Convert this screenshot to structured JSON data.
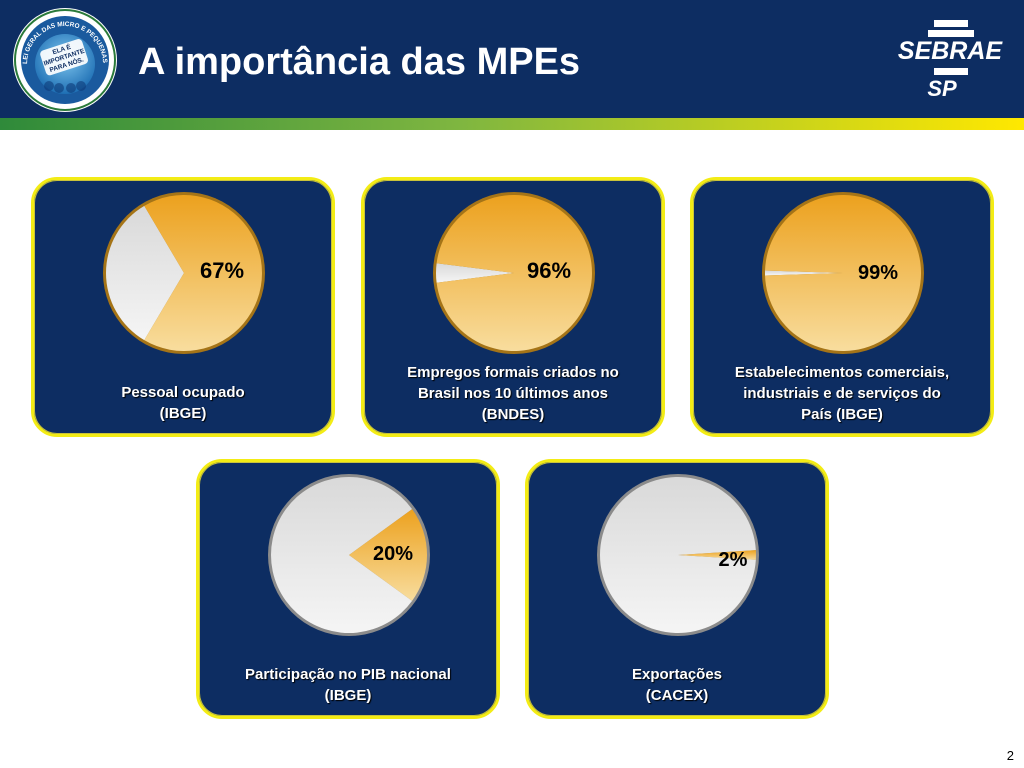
{
  "header": {
    "title": "A importância das MPEs",
    "badge_text_outer": "LEI GERAL DAS MICRO E PEQUENAS EMPRESAS",
    "badge_text_inner": [
      "ELA É",
      "IMPORTANTE",
      "PARA NÓS."
    ],
    "brand_line1": "SEBRAE",
    "brand_line2": "SP"
  },
  "colors": {
    "header_bg": "#0d2d62",
    "card_border": "#f3ec15",
    "highlight": "#eea320",
    "rest": "#e6e6e6"
  },
  "chart_data": [
    {
      "type": "pie",
      "title": "",
      "caption": [
        "Pessoal ocupado",
        "(IBGE)"
      ],
      "slices": [
        {
          "label": "67%",
          "value": 67,
          "highlight": true
        },
        {
          "label": "",
          "value": 33,
          "highlight": false
        }
      ]
    },
    {
      "type": "pie",
      "title": "",
      "caption": [
        "Empregos formais criados no",
        "Brasil nos 10 últimos anos",
        "(BNDES)"
      ],
      "slices": [
        {
          "label": "96%",
          "value": 96,
          "highlight": true
        },
        {
          "label": "",
          "value": 4,
          "highlight": false
        }
      ]
    },
    {
      "type": "pie",
      "title": "",
      "caption": [
        "Estabelecimentos  comerciais,",
        "industriais e de serviços do",
        "País (IBGE)"
      ],
      "slices": [
        {
          "label": "99%",
          "value": 99,
          "highlight": true
        },
        {
          "label": "",
          "value": 1,
          "highlight": false
        }
      ]
    },
    {
      "type": "pie",
      "title": "",
      "caption": [
        "Participação no PIB nacional",
        "(IBGE)"
      ],
      "slices": [
        {
          "label": "20%",
          "value": 20,
          "highlight": true
        },
        {
          "label": "",
          "value": 80,
          "highlight": false
        }
      ]
    },
    {
      "type": "pie",
      "title": "",
      "caption": [
        "Exportações",
        "(CACEX)"
      ],
      "slices": [
        {
          "label": "2%",
          "value": 2,
          "highlight": true
        },
        {
          "label": "",
          "value": 98,
          "highlight": false
        }
      ]
    }
  ],
  "footer": {
    "page_number": "2"
  }
}
